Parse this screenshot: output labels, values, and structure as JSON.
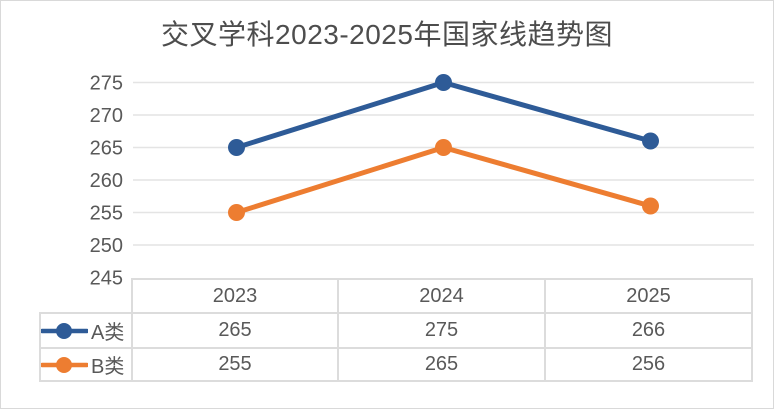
{
  "title": "交叉学科2023-2025年国家线趋势图",
  "colors": {
    "series_a": "#2e5b97",
    "series_b": "#ed7d31",
    "gridline": "#e4e4e4",
    "table_border": "#dcdcdc",
    "axis_text": "#595959",
    "title_text": "#4d4d4d"
  },
  "chart_data": {
    "type": "line",
    "title": "交叉学科2023-2025年国家线趋势图",
    "categories": [
      "2023",
      "2024",
      "2025"
    ],
    "series": [
      {
        "name": "A类",
        "values": [
          265,
          275,
          266
        ],
        "color": "#2e5b97"
      },
      {
        "name": "B类",
        "values": [
          255,
          265,
          256
        ],
        "color": "#ed7d31"
      }
    ],
    "ylim": [
      245,
      275
    ],
    "yticks": [
      275,
      270,
      265,
      260,
      255,
      250,
      245
    ],
    "grid": true,
    "marker": "circle",
    "legend_position": "table-left"
  },
  "table": {
    "columns": [
      "2023",
      "2024",
      "2025"
    ],
    "rows": [
      {
        "name": "A类",
        "values": [
          "265",
          "275",
          "266"
        ]
      },
      {
        "name": "B类",
        "values": [
          "255",
          "265",
          "256"
        ]
      }
    ]
  }
}
